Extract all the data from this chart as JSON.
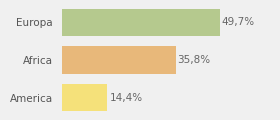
{
  "categories": [
    "America",
    "Africa",
    "Europa"
  ],
  "values": [
    14.4,
    35.8,
    49.7
  ],
  "labels": [
    "14,4%",
    "35,8%",
    "49,7%"
  ],
  "bar_colors": [
    "#f5e17a",
    "#e8b87a",
    "#b5c98e"
  ],
  "background_color": "#f0f0f0",
  "xlim": [
    0,
    58
  ],
  "label_fontsize": 7.5,
  "tick_fontsize": 7.5,
  "bar_height": 0.72,
  "figsize": [
    2.8,
    1.2
  ],
  "dpi": 100
}
